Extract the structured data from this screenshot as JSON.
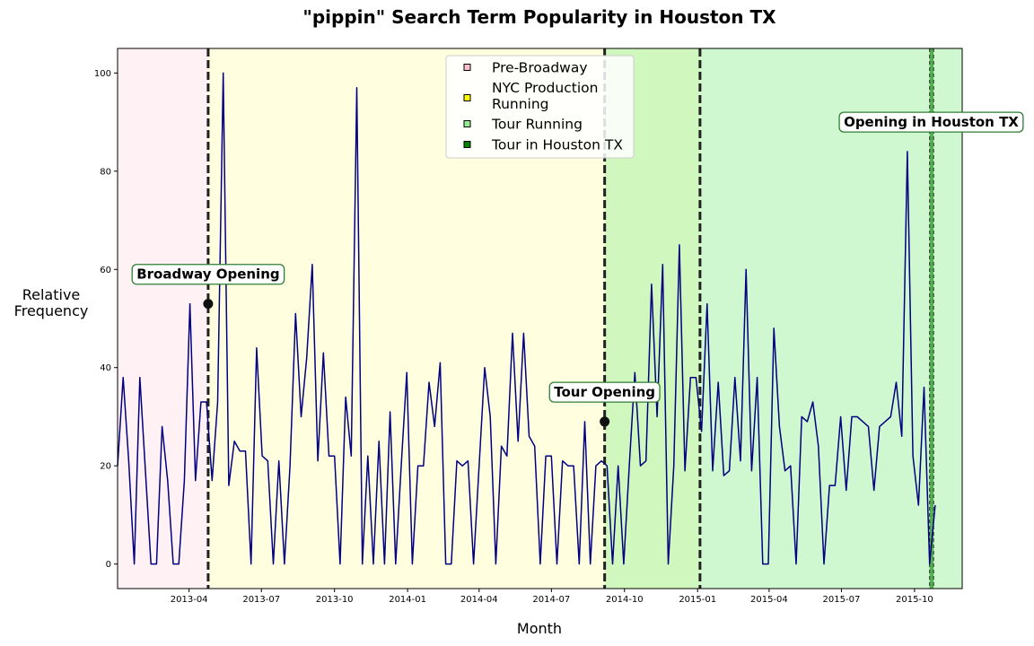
{
  "chart_data": {
    "type": "line",
    "title": "\"pippin\" Search Term Popularity in Houston TX",
    "xlabel": "Month",
    "ylabel": "Relative\nFrequency",
    "x_range": [
      "2013-01-01",
      "2015-11-30"
    ],
    "ylim": [
      -5,
      105
    ],
    "y_ticks": [
      0,
      20,
      40,
      60,
      80,
      100
    ],
    "x_ticks": [
      {
        "date": "2013-04-01",
        "label": "2013-04"
      },
      {
        "date": "2013-07-01",
        "label": "2013-07"
      },
      {
        "date": "2013-10-01",
        "label": "2013-10"
      },
      {
        "date": "2014-01-01",
        "label": "2014-01"
      },
      {
        "date": "2014-04-01",
        "label": "2014-04"
      },
      {
        "date": "2014-07-01",
        "label": "2014-07"
      },
      {
        "date": "2014-10-01",
        "label": "2014-10"
      },
      {
        "date": "2015-01-01",
        "label": "2015-01"
      },
      {
        "date": "2015-04-01",
        "label": "2015-04"
      },
      {
        "date": "2015-07-01",
        "label": "2015-07"
      },
      {
        "date": "2015-10-01",
        "label": "2015-10"
      }
    ],
    "series": [
      {
        "name": "Relative Frequency",
        "color": "#000080",
        "start": "2013-01-01",
        "step_days": 7,
        "values": [
          20,
          38,
          21,
          0,
          38,
          19,
          0,
          0,
          28,
          17,
          0,
          0,
          17,
          53,
          17,
          33,
          33,
          17,
          33,
          100,
          16,
          25,
          23,
          23,
          0,
          44,
          22,
          21,
          0,
          21,
          0,
          20,
          51,
          30,
          42,
          61,
          21,
          43,
          22,
          22,
          0,
          34,
          22,
          97,
          0,
          22,
          0,
          25,
          0,
          31,
          0,
          20,
          39,
          0,
          20,
          20,
          37,
          28,
          41,
          0,
          0,
          21,
          20,
          21,
          0,
          20,
          40,
          30,
          0,
          24,
          22,
          47,
          25,
          47,
          26,
          24,
          0,
          22,
          22,
          0,
          21,
          20,
          20,
          0,
          29,
          0,
          20,
          21,
          20,
          0,
          20,
          0,
          20,
          39,
          20,
          21,
          57,
          30,
          61,
          0,
          20,
          65,
          19,
          38,
          38,
          27,
          53,
          19,
          37,
          18,
          19,
          38,
          21,
          60,
          19,
          38,
          0,
          0,
          48,
          28,
          19,
          20,
          0,
          30,
          29,
          33,
          24,
          0,
          16,
          16,
          30,
          15,
          30,
          30,
          29,
          28,
          15,
          28,
          29,
          30,
          37,
          26,
          84,
          22,
          12,
          36,
          0,
          12
        ]
      }
    ],
    "periods": [
      {
        "name": "Pre-Broadway",
        "start": "2013-01-01",
        "end": "2013-04-25",
        "color": "#ffc0cb",
        "opacity": 0.22
      },
      {
        "name": "NYC Production Running",
        "start": "2013-04-25",
        "end": "2015-01-04",
        "color": "#ffff00",
        "opacity": 0.12
      },
      {
        "name": "Tour Running",
        "start": "2014-09-06",
        "end": "2015-11-30",
        "color": "#90ee90",
        "opacity": 0.42
      },
      {
        "name": "Tour in Houston TX",
        "start": "2015-10-20",
        "end": "2015-10-25",
        "color": "#008000",
        "opacity": 0.6
      }
    ],
    "vlines": [
      "2013-04-25",
      "2014-09-06",
      "2015-01-04"
    ],
    "events": [
      {
        "label": "Broadway Opening",
        "date": "2013-04-25",
        "y": 53,
        "marker": true,
        "label_y": 59
      },
      {
        "label": "Tour Opening",
        "date": "2014-09-06",
        "y": 29,
        "marker": true,
        "label_y": 35
      },
      {
        "label": "Opening in Houston TX",
        "date": "2015-10-22",
        "y": 90,
        "marker": false,
        "label_y": 90
      }
    ],
    "legend": {
      "placement": "top-center",
      "entries": [
        {
          "label": "Pre-Broadway",
          "color": "#ffc0cb"
        },
        {
          "label": "NYC Production\nRunning",
          "color": "#ffff00"
        },
        {
          "label": "Tour Running",
          "color": "#90ee90"
        },
        {
          "label": "Tour in Houston TX",
          "color": "#008000"
        }
      ]
    },
    "grid": false
  }
}
